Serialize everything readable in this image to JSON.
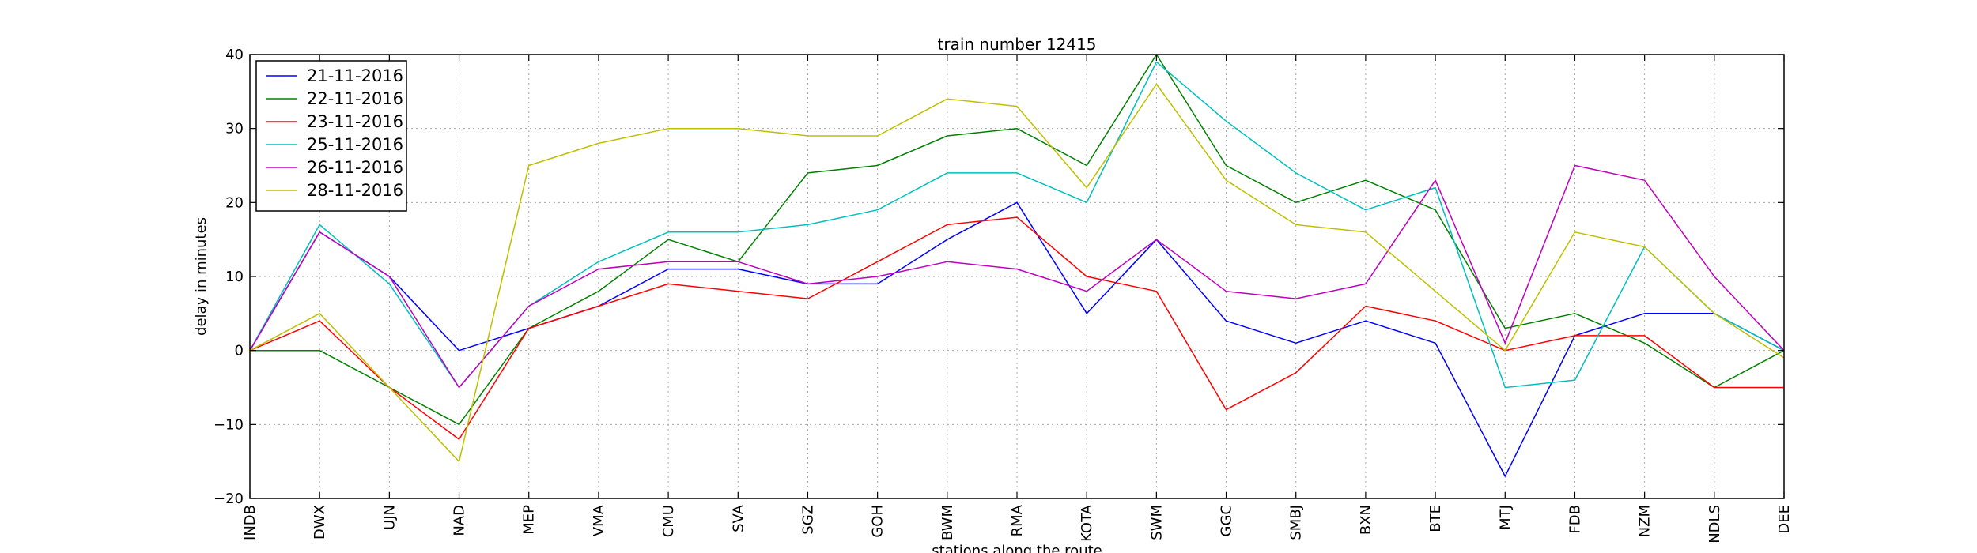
{
  "chart_data": {
    "type": "line",
    "title": "train number 12415",
    "xlabel": "stations along the route",
    "ylabel": "delay in minutes",
    "ylim": [
      -20,
      40
    ],
    "yticks": [
      -20,
      -10,
      0,
      10,
      20,
      30,
      40
    ],
    "ytick_labels": [
      "−20",
      "−10",
      "0",
      "10",
      "20",
      "30",
      "40"
    ],
    "grid": true,
    "legend_position": "top-left",
    "categories": [
      "INDB",
      "DWX",
      "UJN",
      "NAD",
      "MEP",
      "VMA",
      "CMU",
      "SVA",
      "SGZ",
      "GOH",
      "BWM",
      "RMA",
      "KOTA",
      "SWM",
      "GGC",
      "SMBJ",
      "BXN",
      "BTE",
      "MTJ",
      "FDB",
      "NZM",
      "NDLS",
      "DEE"
    ],
    "series": [
      {
        "name": "21-11-2016",
        "color": "#0000ff",
        "values": [
          0,
          16,
          10,
          0,
          3,
          6,
          11,
          11,
          9,
          9,
          15,
          20,
          5,
          15,
          4,
          1,
          4,
          1,
          -17,
          2,
          5,
          5,
          0
        ]
      },
      {
        "name": "22-11-2016",
        "color": "#008000",
        "values": [
          0,
          0,
          -5,
          -10,
          3,
          8,
          15,
          12,
          24,
          25,
          29,
          30,
          25,
          40,
          25,
          20,
          23,
          19,
          3,
          5,
          1,
          -5,
          0
        ]
      },
      {
        "name": "23-11-2016",
        "color": "#ff0000",
        "values": [
          0,
          4,
          -5,
          -12,
          3,
          6,
          9,
          8,
          7,
          12,
          17,
          18,
          10,
          8,
          -8,
          -3,
          6,
          4,
          0,
          2,
          2,
          -5,
          -5
        ]
      },
      {
        "name": "25-11-2016",
        "color": "#00bfbf",
        "values": [
          0,
          17,
          9,
          -5,
          6,
          12,
          16,
          16,
          17,
          19,
          24,
          24,
          20,
          39,
          31,
          24,
          19,
          22,
          -5,
          -4,
          14,
          5,
          0
        ]
      },
      {
        "name": "26-11-2016",
        "color": "#bf00bf",
        "values": [
          0,
          16,
          10,
          -5,
          6,
          11,
          12,
          12,
          9,
          10,
          12,
          11,
          8,
          15,
          8,
          7,
          9,
          23,
          1,
          25,
          23,
          10,
          0
        ]
      },
      {
        "name": "28-11-2016",
        "color": "#bfbf00",
        "values": [
          0,
          5,
          -5,
          -15,
          25,
          28,
          30,
          30,
          29,
          29,
          34,
          33,
          22,
          36,
          23,
          17,
          16,
          8,
          0,
          16,
          14,
          5,
          -1
        ]
      }
    ]
  }
}
